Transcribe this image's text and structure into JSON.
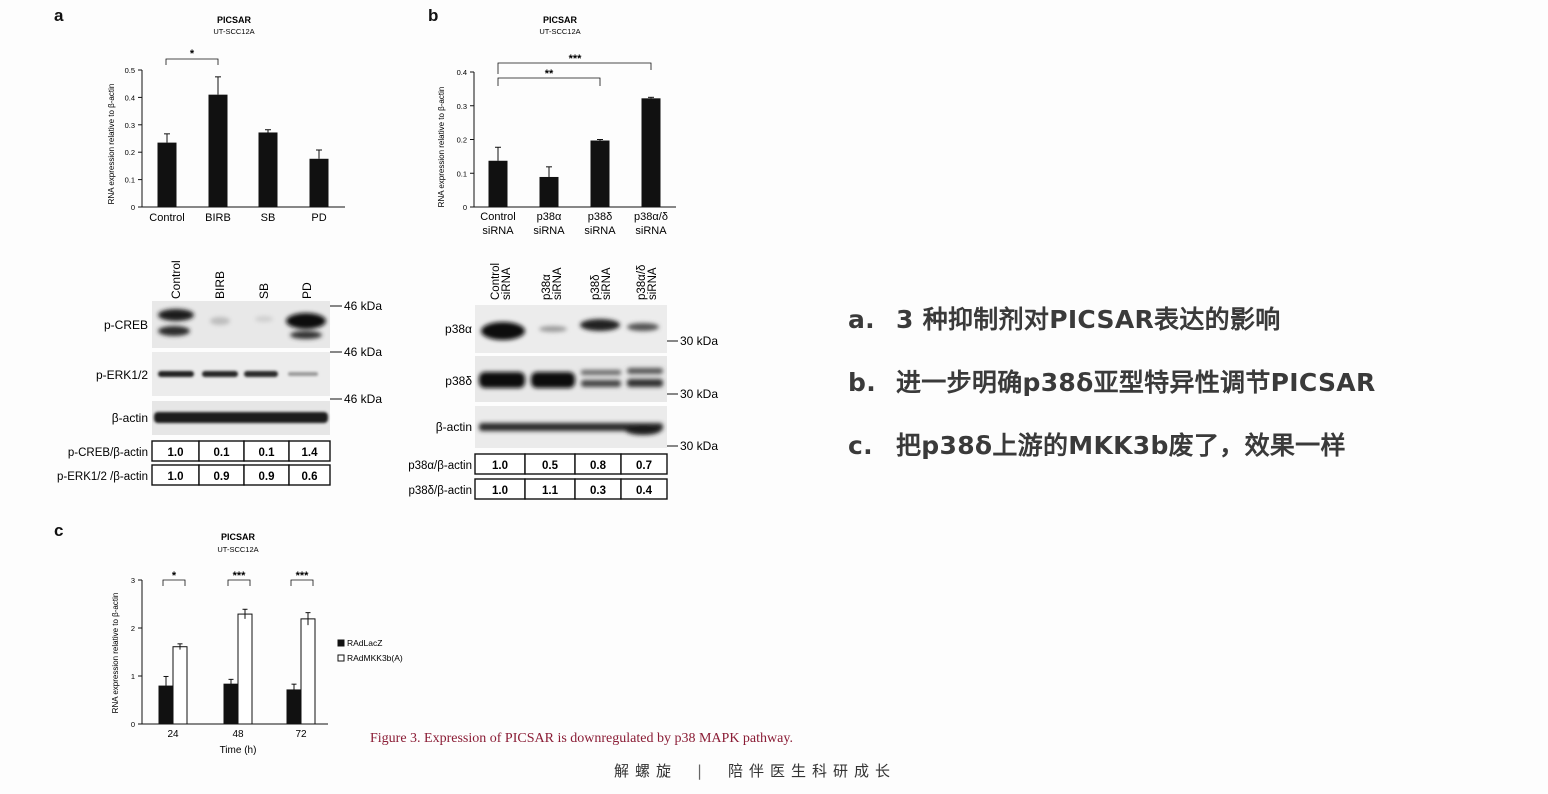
{
  "panel_a": {
    "letter": "a",
    "title": "PICSAR",
    "subtitle": "UT-SCC12A",
    "ylabel": "RNA expression relative to β-actin",
    "yticks": [
      "0",
      "0.1",
      "0.2",
      "0.3",
      "0.4",
      "0.5"
    ],
    "significance": "*",
    "blot": {
      "lanes": [
        "Control",
        "BIRB",
        "SB",
        "PD"
      ],
      "rows": [
        "p-CREB",
        "p-ERK1/2",
        "β-actin"
      ],
      "markers": [
        "46 kDa",
        "46 kDa",
        "46 kDa"
      ],
      "quant": [
        {
          "label": "p-CREB/β-actin",
          "values": [
            "1.0",
            "0.1",
            "0.1",
            "1.4"
          ]
        },
        {
          "label": "p-ERK1/2 /β-actin",
          "values": [
            "1.0",
            "0.9",
            "0.9",
            "0.6"
          ]
        }
      ]
    }
  },
  "panel_b": {
    "letter": "b",
    "title": "PICSAR",
    "subtitle": "UT-SCC12A",
    "ylabel": "RNA expression relative to β-actin",
    "yticks": [
      "0",
      "0.1",
      "0.2",
      "0.3",
      "0.4"
    ],
    "sig_top": "***",
    "sig_mid": "**",
    "blot": {
      "lanes": [
        [
          "Control",
          "siRNA"
        ],
        [
          "p38α",
          "siRNA"
        ],
        [
          "p38δ",
          "siRNA"
        ],
        [
          "p38α/δ",
          "siRNA"
        ]
      ],
      "rows": [
        "p38α",
        "p38δ",
        "β-actin"
      ],
      "markers": [
        "30 kDa",
        "30 kDa",
        "30 kDa"
      ],
      "quant": [
        {
          "label": "p38α/β-actin",
          "values": [
            "1.0",
            "0.5",
            "0.8",
            "0.7"
          ]
        },
        {
          "label": "p38δ/β-actin",
          "values": [
            "1.0",
            "1.1",
            "0.3",
            "0.4"
          ]
        }
      ]
    }
  },
  "panel_c": {
    "letter": "c",
    "title": "PICSAR",
    "subtitle": "UT-SCC12A",
    "ylabel": "RNA expression relative to β-actin",
    "yticks": [
      "0",
      "1",
      "2",
      "3"
    ],
    "xlabel": "Time (h)",
    "sig": [
      "*",
      "***",
      "***"
    ]
  },
  "chart_data": [
    {
      "type": "bar",
      "title": "PICSAR",
      "subtitle": "UT-SCC12A",
      "xlabel": "",
      "ylabel": "RNA expression relative to β-actin",
      "categories": [
        "Control",
        "BIRB",
        "SB",
        "PD"
      ],
      "values": [
        0.235,
        0.41,
        0.272,
        0.176
      ],
      "errors": [
        0.032,
        0.065,
        0.01,
        0.032
      ],
      "ylim": [
        0,
        0.5
      ],
      "bar_color": "#111111"
    },
    {
      "type": "bar",
      "title": "PICSAR",
      "subtitle": "UT-SCC12A",
      "xlabel": "",
      "ylabel": "RNA expression relative to β-actin",
      "categories": [
        "Control siRNA",
        "p38α siRNA",
        "p38δ siRNA",
        "p38α/δ siRNA"
      ],
      "values": [
        0.137,
        0.089,
        0.197,
        0.322
      ],
      "errors": [
        0.04,
        0.03,
        0.003,
        0.003
      ],
      "ylim": [
        0,
        0.4
      ],
      "bar_color": "#111111"
    },
    {
      "type": "bar",
      "title": "PICSAR",
      "subtitle": "UT-SCC12A",
      "xlabel": "Time (h)",
      "ylabel": "RNA expression relative to β-actin",
      "categories": [
        "24",
        "48",
        "72"
      ],
      "series": [
        {
          "name": "RAdLacZ",
          "values": [
            0.79,
            0.83,
            0.71
          ],
          "errors": [
            0.2,
            0.1,
            0.12
          ],
          "color": "#111111"
        },
        {
          "name": "RAdMKK3b(A)",
          "values": [
            1.61,
            2.29,
            2.19
          ],
          "errors": [
            0.06,
            0.1,
            0.13
          ],
          "color": "#ffffff"
        }
      ],
      "ylim": [
        0,
        3
      ],
      "legend": "right"
    }
  ],
  "notes": [
    {
      "key": "a.",
      "text": "3 种抑制剂对PICSAR表达的影响"
    },
    {
      "key": "b.",
      "text": "进一步明确p38δ亚型特异性调节PICSAR"
    },
    {
      "key": "c.",
      "text": "把p38δ上游的MKK3b废了，效果一样"
    }
  ],
  "caption": "Figure 3.  Expression of PICSAR is downregulated by p38 MAPK pathway.",
  "footer": {
    "left": "解螺旋",
    "sep": "|",
    "right": "陪伴医生科研成长"
  }
}
